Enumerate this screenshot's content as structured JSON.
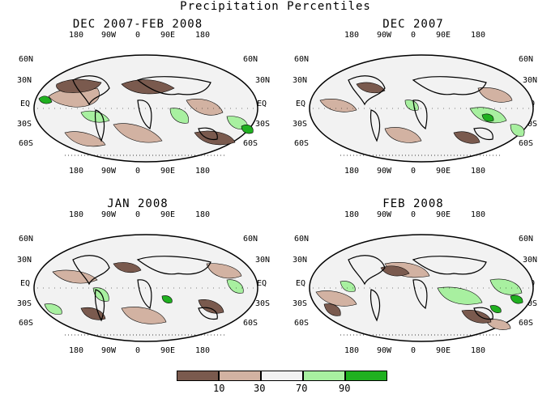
{
  "figure": {
    "title": "Precipitation Percentiles"
  },
  "colors": {
    "very_dry": "#7a5a4e",
    "dry": "#d2b2a2",
    "normal": "#f2f2f2",
    "wet": "#a8f0a0",
    "very_wet": "#20b020"
  },
  "axes": {
    "lon_labels": [
      "180",
      "90W",
      "0",
      "90E",
      "180"
    ],
    "lat_labels_left": [
      "60N",
      "30N",
      "EQ",
      "30S",
      "60S"
    ],
    "lat_labels_right": [
      "60N",
      "30N",
      "EQ",
      "30S",
      "60S"
    ]
  },
  "panels": [
    {
      "title": "DEC 2007-FEB 2008"
    },
    {
      "title": "DEC 2007"
    },
    {
      "title": "JAN 2008"
    },
    {
      "title": "FEB 2008"
    }
  ],
  "legend": {
    "labels": [
      "10",
      "30",
      "70",
      "90"
    ]
  }
}
